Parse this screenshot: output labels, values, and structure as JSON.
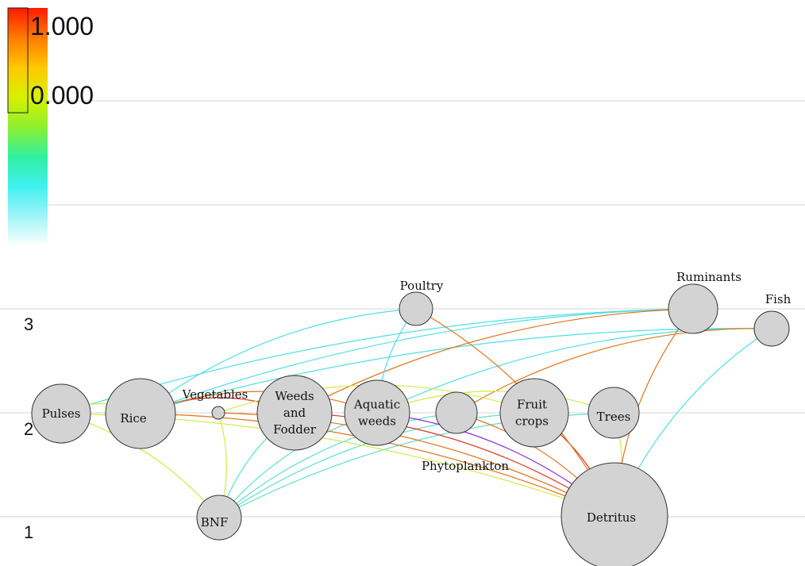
{
  "legend": {
    "max_label": "1.000",
    "mid_label": "0.000",
    "gradient": [
      "#ff1a00",
      "#ff7a00",
      "#ffc800",
      "#d8f000",
      "#8ef030",
      "#30f0a0",
      "#40f0f0",
      "#a0f4f8",
      "#ffffff"
    ]
  },
  "levels": [
    {
      "id": "l3",
      "label": "3"
    },
    {
      "id": "l2",
      "label": "2"
    },
    {
      "id": "l1",
      "label": "1"
    }
  ],
  "nodes": [
    {
      "id": "pulses",
      "lines": [
        "Pulses"
      ],
      "level": 2
    },
    {
      "id": "rice",
      "lines": [
        "Rice"
      ],
      "level": 2
    },
    {
      "id": "vegetables",
      "lines": [
        "Vegetables"
      ],
      "level": 2
    },
    {
      "id": "weeds",
      "lines": [
        "Weeds",
        "and",
        "Fodder"
      ],
      "level": 2
    },
    {
      "id": "aquatic",
      "lines": [
        "Aquatic",
        "weeds"
      ],
      "level": 2
    },
    {
      "id": "phyto",
      "lines": [
        "Phytoplankton"
      ],
      "level": 2
    },
    {
      "id": "fruit",
      "lines": [
        "Fruit",
        "crops"
      ],
      "level": 2
    },
    {
      "id": "trees",
      "lines": [
        "Trees"
      ],
      "level": 2
    },
    {
      "id": "poultry",
      "lines": [
        "Poultry"
      ],
      "level": 3
    },
    {
      "id": "ruminants",
      "lines": [
        "Ruminants"
      ],
      "level": 3
    },
    {
      "id": "fish",
      "lines": [
        "Fish"
      ],
      "level": 3
    },
    {
      "id": "bnf",
      "lines": [
        "BNF"
      ],
      "level": 1
    },
    {
      "id": "detritus",
      "lines": [
        "Detritus"
      ],
      "level": 1
    }
  ],
  "flows": [
    {
      "from": "pulses",
      "to": "ruminants",
      "color": "#4fdfe6"
    },
    {
      "from": "rice",
      "to": "poultry",
      "color": "#4fdfe6"
    },
    {
      "from": "rice",
      "to": "ruminants",
      "color": "#4fdfe6"
    },
    {
      "from": "rice",
      "to": "fish",
      "color": "#4fdfe6"
    },
    {
      "from": "weeds",
      "to": "ruminants",
      "color": "#e0741a"
    },
    {
      "from": "aquatic",
      "to": "poultry",
      "color": "#4fdfe6"
    },
    {
      "from": "aquatic",
      "to": "fish",
      "color": "#4fdfe6"
    },
    {
      "from": "phyto",
      "to": "fish",
      "color": "#e0741a"
    },
    {
      "from": "detritus",
      "to": "fish",
      "color": "#4fdfe6"
    },
    {
      "from": "bnf",
      "to": "pulses",
      "color": "#d6e84a"
    },
    {
      "from": "bnf",
      "to": "vegetables",
      "color": "#d6e84a"
    },
    {
      "from": "bnf",
      "to": "weeds",
      "color": "#5fe0cf"
    },
    {
      "from": "bnf",
      "to": "aquatic",
      "color": "#5fe0cf"
    },
    {
      "from": "bnf",
      "to": "phyto",
      "color": "#5fe0cf"
    },
    {
      "from": "bnf",
      "to": "fruit",
      "color": "#5fe0cf"
    },
    {
      "from": "bnf",
      "to": "trees",
      "color": "#5fe0cf"
    },
    {
      "from": "pulses",
      "to": "rice",
      "color": "#d6e84a"
    },
    {
      "from": "rice",
      "to": "weeds",
      "color": "#e03020"
    },
    {
      "from": "rice",
      "to": "aquatic",
      "color": "#e0741a"
    },
    {
      "from": "vegetables",
      "to": "fruit",
      "color": "#d6e84a"
    },
    {
      "from": "weeds",
      "to": "detritus",
      "color": "#e03020"
    },
    {
      "from": "aquatic",
      "to": "detritus",
      "color": "#8a2bd6"
    },
    {
      "from": "rice",
      "to": "detritus",
      "color": "#e0741a"
    },
    {
      "from": "pulses",
      "to": "detritus",
      "color": "#d6e84a"
    },
    {
      "from": "vegetables",
      "to": "detritus",
      "color": "#e0741a"
    },
    {
      "from": "phyto",
      "to": "detritus",
      "color": "#e0741a"
    },
    {
      "from": "fruit",
      "to": "detritus",
      "color": "#e03020"
    },
    {
      "from": "trees",
      "to": "detritus",
      "color": "#d6e84a"
    },
    {
      "from": "poultry",
      "to": "detritus",
      "color": "#e0741a"
    },
    {
      "from": "ruminants",
      "to": "detritus",
      "color": "#e0741a"
    },
    {
      "from": "trees",
      "to": "aquatic",
      "color": "#d6e84a"
    }
  ]
}
